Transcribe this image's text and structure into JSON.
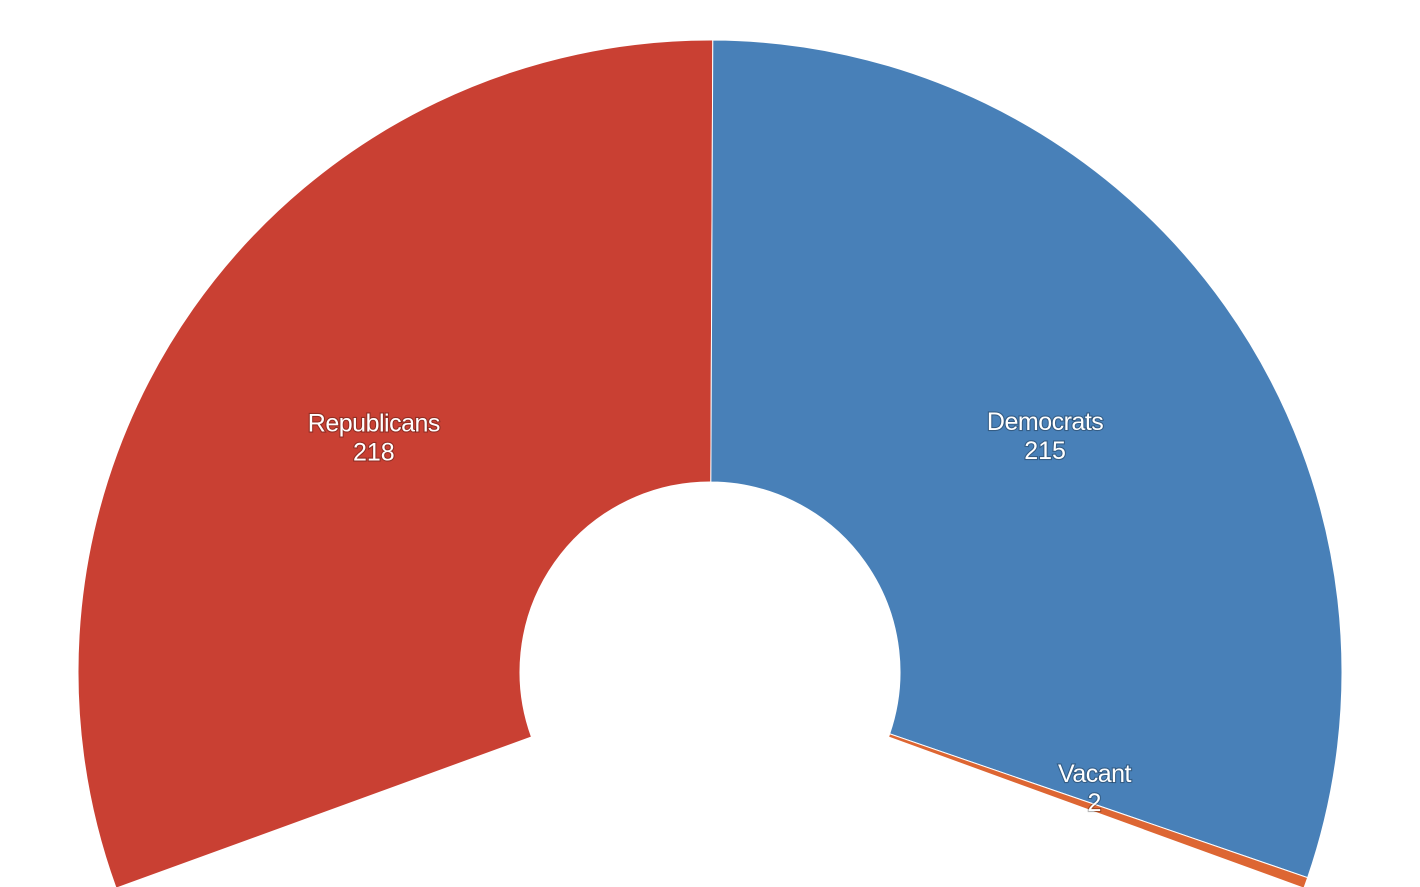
{
  "chart_data": {
    "type": "pie",
    "style": "semicircle-donut",
    "start_angle_deg": -110,
    "end_angle_deg": 110,
    "title": "",
    "slices": [
      {
        "name": "Republicans",
        "value": 218,
        "color": "#c94033"
      },
      {
        "name": "Democrats",
        "value": 215,
        "color": "#4880b8"
      },
      {
        "name": "Vacant",
        "value": 2,
        "color": "#dd6633"
      }
    ]
  }
}
